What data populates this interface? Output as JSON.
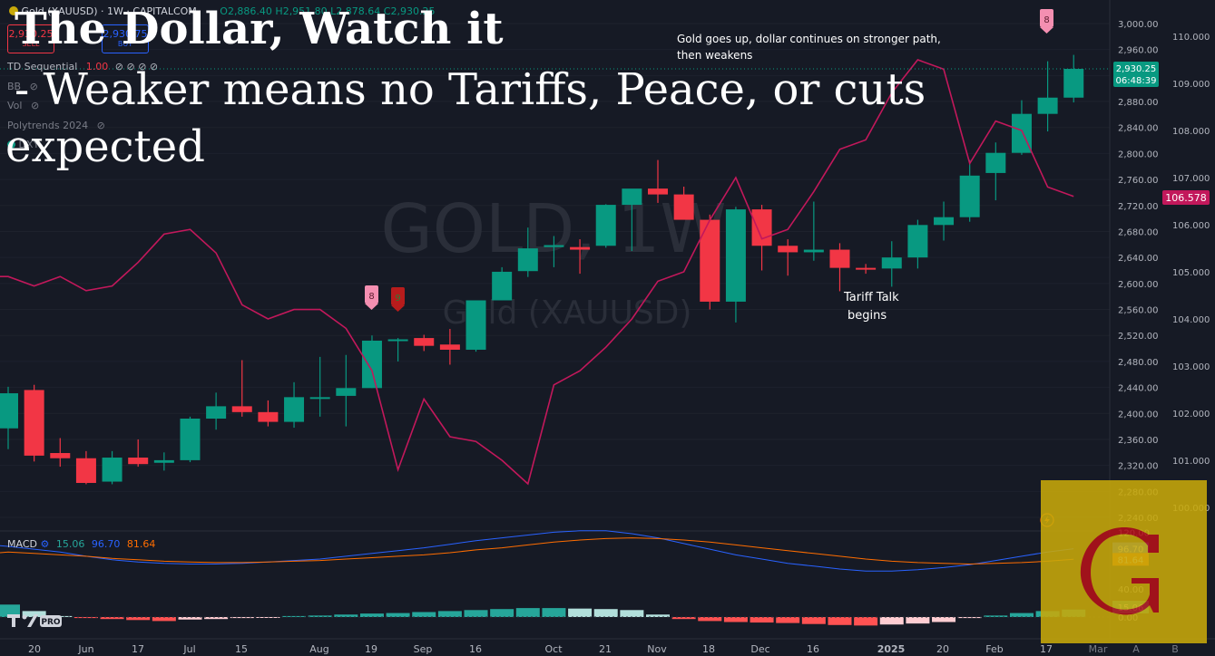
{
  "header": {
    "symbol": "Gold (XAUUSD) · 1W · CAPITALCOM",
    "ohlc": "O2,886.40 H2,951.80 L2,878.64 C2,930.25",
    "sell_price": "2,930.25",
    "sell_label": "SELL",
    "buy_price": "2,930.75",
    "buy_label": "BUY"
  },
  "indicators": [
    {
      "name": "TD Sequential",
      "value": "1.00"
    },
    {
      "name": "BB",
      "value": ""
    },
    {
      "name": "Vol",
      "value": ""
    },
    {
      "name": "Polytrends 2024",
      "value": ""
    },
    {
      "name": "DXY",
      "value": ""
    }
  ],
  "overlay": {
    "line1": "The Dollar, Watch it",
    "line2": "- Weaker means no Tariffs, Peace, or cuts",
    "line3": "expected"
  },
  "watermark": {
    "big": "GOLD, 1W",
    "small": "Gold (XAUUSD)"
  },
  "annotations": {
    "gold_note_1": "Gold goes up, dollar continues on stronger path,",
    "gold_note_2": "then weakens",
    "tariff_1": "Tariff Talk",
    "tariff_2": "begins"
  },
  "badges": {
    "latest": "8",
    "left1": "8",
    "left2": "9"
  },
  "price_tags": {
    "gold_price": "2,930.25",
    "countdown": "06:48:39",
    "dxy": "106.578"
  },
  "macd": {
    "label": "MACD",
    "v1": "15.06",
    "v2": "96.70",
    "v3": "81.64",
    "tag_signal": "96.70",
    "tag_macd": "81.64",
    "tag_hist": "15.06"
  },
  "right_axis_ticks": [
    "3,000.00",
    "2,960.00",
    "2,920.00",
    "2,880.00",
    "2,840.00",
    "2,800.00",
    "2,760.00",
    "2,720.00",
    "2,680.00",
    "2,640.00",
    "2,600.00",
    "2,560.00",
    "2,520.00",
    "2,480.00",
    "2,440.00",
    "2,400.00",
    "2,360.00",
    "2,320.00",
    "2,280.00",
    "2,240.00"
  ],
  "dxy_axis_ticks": [
    "110.000",
    "109.000",
    "108.000",
    "107.000",
    "106.000",
    "105.000",
    "104.000",
    "103.000",
    "102.000",
    "101.000",
    "100.000"
  ],
  "macd_axis_ticks": [
    "120.00",
    "40.00",
    "0.00"
  ],
  "x_axis_labels": [
    "20",
    "Jun",
    "17",
    "Jul",
    "15",
    "Aug",
    "19",
    "Sep",
    "16",
    "Oct",
    "21",
    "Nov",
    "18",
    "Dec",
    "16",
    "2025",
    "20",
    "Feb",
    "17",
    "Mar",
    "A",
    "B"
  ],
  "colors": {
    "up": "#089981",
    "down": "#f23645",
    "dxy": "#c2185b",
    "macd_blue": "#2962ff",
    "macd_orange": "#ff6d00",
    "logo_bg": "#c8a90a",
    "logo_g": "#b4121a"
  },
  "chart_data": {
    "type": "candlestick",
    "interval": "1W",
    "ylim": [
      2240,
      3010
    ],
    "gold_ohlc": [
      [
        2377,
        2441,
        2345,
        2431
      ],
      [
        2436,
        2444,
        2326,
        2335
      ],
      [
        2339,
        2362,
        2318,
        2331
      ],
      [
        2331,
        2342,
        2291,
        2293
      ],
      [
        2295,
        2342,
        2291,
        2332
      ],
      [
        2332,
        2360,
        2318,
        2322
      ],
      [
        2324,
        2340,
        2312,
        2328
      ],
      [
        2328,
        2395,
        2325,
        2392
      ],
      [
        2392,
        2432,
        2375,
        2411
      ],
      [
        2411,
        2482,
        2395,
        2402
      ],
      [
        2402,
        2420,
        2380,
        2387
      ],
      [
        2387,
        2448,
        2378,
        2425
      ],
      [
        2425,
        2487,
        2395,
        2425
      ],
      [
        2427,
        2490,
        2380,
        2439
      ],
      [
        2439,
        2520,
        2439,
        2512
      ],
      [
        2512,
        2516,
        2480,
        2514
      ],
      [
        2516,
        2521,
        2496,
        2504
      ],
      [
        2506,
        2530,
        2475,
        2498
      ],
      [
        2498,
        2570,
        2495,
        2574
      ],
      [
        2574,
        2625,
        2574,
        2618
      ],
      [
        2619,
        2686,
        2610,
        2654
      ],
      [
        2656,
        2673,
        2625,
        2659
      ],
      [
        2656,
        2668,
        2615,
        2652
      ],
      [
        2658,
        2722,
        2655,
        2721
      ],
      [
        2721,
        2725,
        2650,
        2746
      ],
      [
        2746,
        2790,
        2724,
        2737
      ],
      [
        2737,
        2749,
        2710,
        2698
      ],
      [
        2698,
        2706,
        2560,
        2572
      ],
      [
        2572,
        2718,
        2540,
        2714
      ],
      [
        2714,
        2721,
        2620,
        2658
      ],
      [
        2658,
        2668,
        2612,
        2648
      ],
      [
        2648,
        2726,
        2635,
        2652
      ],
      [
        2652,
        2662,
        2588,
        2624
      ],
      [
        2624,
        2630,
        2615,
        2623
      ],
      [
        2623,
        2665,
        2595,
        2640
      ],
      [
        2640,
        2698,
        2623,
        2690
      ],
      [
        2690,
        2726,
        2666,
        2702
      ],
      [
        2702,
        2790,
        2695,
        2766
      ],
      [
        2770,
        2817,
        2728,
        2801
      ],
      [
        2801,
        2882,
        2798,
        2861
      ],
      [
        2861,
        2942,
        2834,
        2886
      ],
      [
        2886,
        2951.8,
        2878.64,
        2930.25
      ]
    ],
    "dxy_ylim": [
      99.5,
      110.2
    ],
    "dxy_close": [
      104.9,
      104.7,
      104.9,
      104.6,
      104.7,
      105.2,
      105.8,
      105.9,
      105.4,
      104.3,
      104.0,
      104.2,
      104.2,
      103.8,
      102.9,
      100.8,
      102.3,
      101.5,
      101.4,
      101.0,
      100.5,
      102.6,
      102.9,
      103.4,
      104.0,
      104.8,
      105.0,
      106.1,
      107.0,
      105.7,
      105.9,
      106.7,
      107.6,
      107.8,
      108.8,
      109.5,
      109.3,
      107.3,
      108.2,
      108.0,
      106.8,
      106.6
    ],
    "macd_hist": [
      25,
      12,
      2,
      -2,
      -4,
      -6,
      -8,
      -5,
      -4,
      -2,
      -1,
      2,
      3,
      5,
      7,
      8,
      10,
      12,
      14,
      16,
      18,
      18,
      17,
      16,
      14,
      5,
      -4,
      -8,
      -10,
      -11,
      -12,
      -14,
      -16,
      -17,
      -15,
      -13,
      -10,
      -2,
      3,
      8,
      12,
      15.06
    ],
    "macd_line_ylim": [
      -20,
      150
    ],
    "macd_signal": [
      100,
      96,
      92,
      86,
      81,
      78,
      76,
      75,
      75,
      76,
      78,
      80,
      82,
      86,
      90,
      94,
      98,
      103,
      108,
      112,
      116,
      120,
      122,
      122,
      118,
      112,
      104,
      96,
      88,
      82,
      76,
      72,
      68,
      65,
      65,
      67,
      70,
      74,
      80,
      86,
      92,
      96.7
    ],
    "macd_signal2": [
      92,
      90,
      88,
      86,
      83,
      81,
      79,
      78,
      77,
      77,
      78,
      79,
      80,
      82,
      84,
      86,
      88,
      91,
      95,
      98,
      102,
      106,
      109,
      111,
      112,
      111,
      109,
      106,
      102,
      98,
      94,
      90,
      86,
      82,
      79,
      77,
      76,
      75,
      76,
      77,
      79,
      81.64
    ]
  }
}
